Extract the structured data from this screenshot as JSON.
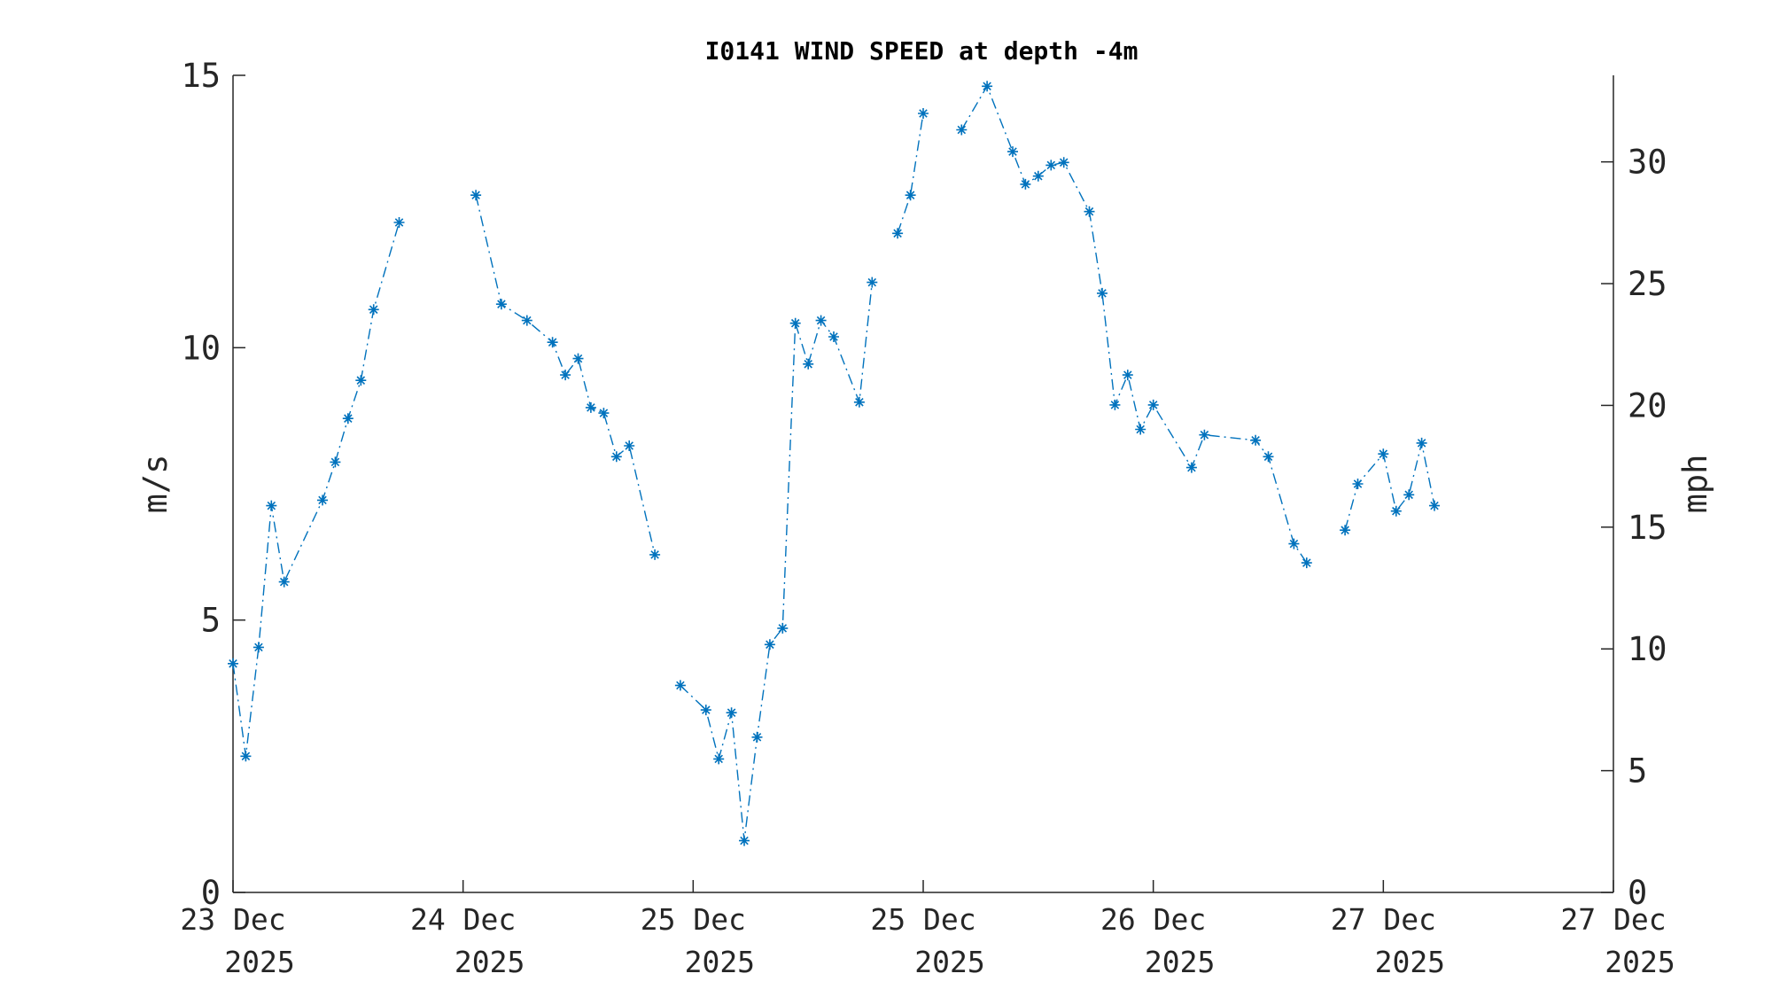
{
  "chart_data": {
    "type": "line",
    "title": "I0141 WIND SPEED at depth -4m",
    "ylabel_left": "m/s",
    "ylabel_right": "mph",
    "ylim": [
      0,
      15
    ],
    "ylim_right": [
      0,
      33.554
    ],
    "yticks_left": [
      "0",
      "5",
      "10",
      "15"
    ],
    "yticks_right": [
      "0",
      "5",
      "10",
      "15",
      "20",
      "25",
      "30"
    ],
    "xticks": [
      {
        "day": "23 Dec",
        "year": "2025"
      },
      {
        "day": "24 Dec",
        "year": "2025"
      },
      {
        "day": "25 Dec",
        "year": "2025"
      },
      {
        "day": "25 Dec",
        "year": "2025"
      },
      {
        "day": "26 Dec",
        "year": "2025"
      },
      {
        "day": "27 Dec",
        "year": "2025"
      },
      {
        "day": "27 Dec",
        "year": "2025"
      }
    ],
    "xlim_hours": [
      0,
      108
    ],
    "marker": "asterisk",
    "line_style": "dash-dot",
    "series_color": "#0072BD",
    "series": [
      {
        "segments": [
          [
            {
              "x": "23 Dec 2025 00:00",
              "y": 4.2
            },
            {
              "x": "23 Dec 2025 01:00",
              "y": 2.5
            },
            {
              "x": "23 Dec 2025 02:00",
              "y": 4.5
            },
            {
              "x": "23 Dec 2025 03:00",
              "y": 7.1
            },
            {
              "x": "23 Dec 2025 04:00",
              "y": 5.7
            },
            {
              "x": "23 Dec 2025 07:00",
              "y": 7.2
            },
            {
              "x": "23 Dec 2025 08:00",
              "y": 7.9
            },
            {
              "x": "23 Dec 2025 09:00",
              "y": 8.7
            },
            {
              "x": "23 Dec 2025 10:00",
              "y": 9.4
            },
            {
              "x": "23 Dec 2025 11:00",
              "y": 10.7
            },
            {
              "x": "23 Dec 2025 13:00",
              "y": 12.3
            }
          ],
          [
            {
              "x": "23 Dec 2025 19:00",
              "y": 12.8
            },
            {
              "x": "23 Dec 2025 21:00",
              "y": 10.8
            },
            {
              "x": "23 Dec 2025 23:00",
              "y": 10.5
            },
            {
              "x": "24 Dec 2025 01:00",
              "y": 10.1
            },
            {
              "x": "24 Dec 2025 02:00",
              "y": 9.5
            },
            {
              "x": "24 Dec 2025 03:00",
              "y": 9.8
            },
            {
              "x": "24 Dec 2025 04:00",
              "y": 8.9
            },
            {
              "x": "24 Dec 2025 05:00",
              "y": 8.8
            },
            {
              "x": "24 Dec 2025 06:00",
              "y": 8.0
            },
            {
              "x": "24 Dec 2025 07:00",
              "y": 8.2
            },
            {
              "x": "24 Dec 2025 09:00",
              "y": 6.2
            }
          ],
          [
            {
              "x": "24 Dec 2025 11:00",
              "y": 3.8
            },
            {
              "x": "24 Dec 2025 13:00",
              "y": 3.35
            },
            {
              "x": "24 Dec 2025 14:00",
              "y": 2.45
            },
            {
              "x": "24 Dec 2025 15:00",
              "y": 3.3
            },
            {
              "x": "24 Dec 2025 16:00",
              "y": 0.95
            },
            {
              "x": "24 Dec 2025 17:00",
              "y": 2.85
            },
            {
              "x": "24 Dec 2025 18:00",
              "y": 4.55
            },
            {
              "x": "24 Dec 2025 19:00",
              "y": 4.85
            },
            {
              "x": "24 Dec 2025 20:00",
              "y": 10.45
            },
            {
              "x": "24 Dec 2025 21:00",
              "y": 9.7
            },
            {
              "x": "24 Dec 2025 22:00",
              "y": 10.5
            },
            {
              "x": "24 Dec 2025 23:00",
              "y": 10.2
            },
            {
              "x": "25 Dec 2025 01:00",
              "y": 9.0
            },
            {
              "x": "25 Dec 2025 02:00",
              "y": 11.2
            }
          ],
          [
            {
              "x": "25 Dec 2025 04:00",
              "y": 12.1
            },
            {
              "x": "25 Dec 2025 05:00",
              "y": 12.8
            },
            {
              "x": "25 Dec 2025 06:00",
              "y": 14.3
            }
          ],
          [
            {
              "x": "25 Dec 2025 09:00",
              "y": 14.0
            },
            {
              "x": "25 Dec 2025 11:00",
              "y": 14.8
            },
            {
              "x": "25 Dec 2025 13:00",
              "y": 13.6
            },
            {
              "x": "25 Dec 2025 14:00",
              "y": 13.0
            },
            {
              "x": "25 Dec 2025 15:00",
              "y": 13.15
            },
            {
              "x": "25 Dec 2025 16:00",
              "y": 13.35
            },
            {
              "x": "25 Dec 2025 17:00",
              "y": 13.4
            },
            {
              "x": "25 Dec 2025 19:00",
              "y": 12.5
            },
            {
              "x": "25 Dec 2025 20:00",
              "y": 11.0
            },
            {
              "x": "25 Dec 2025 21:00",
              "y": 8.95
            },
            {
              "x": "25 Dec 2025 22:00",
              "y": 9.5
            },
            {
              "x": "25 Dec 2025 23:00",
              "y": 8.5
            },
            {
              "x": "26 Dec 2025 00:00",
              "y": 8.95
            },
            {
              "x": "26 Dec 2025 03:00",
              "y": 7.8
            },
            {
              "x": "26 Dec 2025 04:00",
              "y": 8.4
            },
            {
              "x": "26 Dec 2025 08:00",
              "y": 8.3
            },
            {
              "x": "26 Dec 2025 09:00",
              "y": 8.0
            },
            {
              "x": "26 Dec 2025 11:00",
              "y": 6.4
            },
            {
              "x": "26 Dec 2025 12:00",
              "y": 6.05
            }
          ],
          [
            {
              "x": "26 Dec 2025 15:00",
              "y": 6.65
            },
            {
              "x": "26 Dec 2025 16:00",
              "y": 7.5
            },
            {
              "x": "26 Dec 2025 18:00",
              "y": 8.05
            },
            {
              "x": "26 Dec 2025 19:00",
              "y": 7.0
            },
            {
              "x": "26 Dec 2025 20:00",
              "y": 7.3
            },
            {
              "x": "26 Dec 2025 21:00",
              "y": 8.25
            },
            {
              "x": "26 Dec 2025 22:00",
              "y": 7.1
            }
          ]
        ]
      }
    ]
  }
}
